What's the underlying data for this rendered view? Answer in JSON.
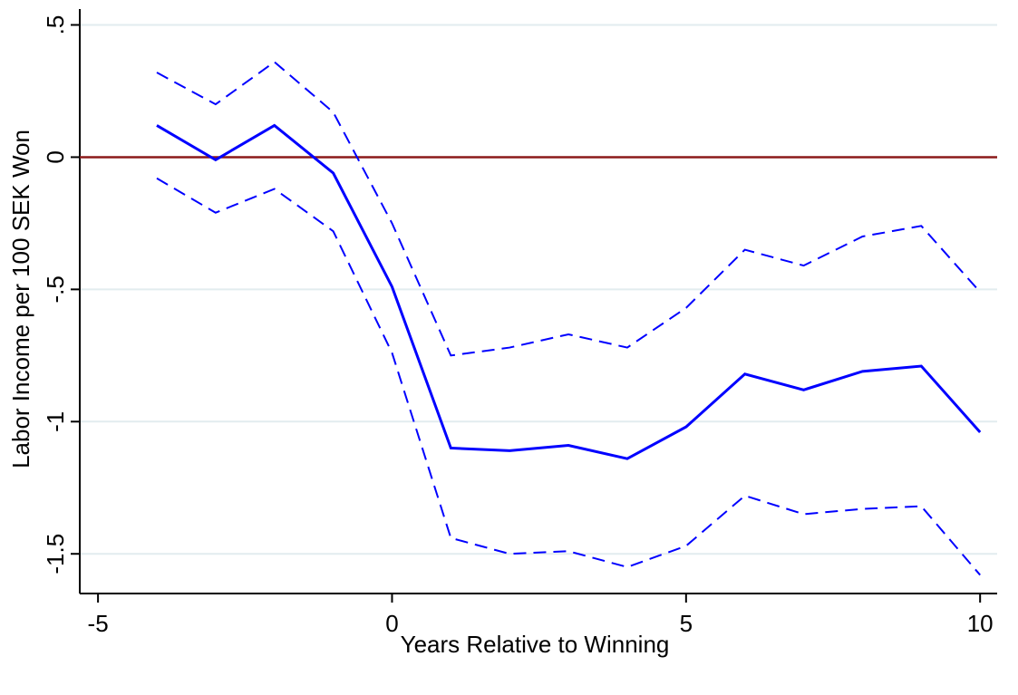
{
  "chart_data": {
    "type": "line",
    "x_label": "Years Relative to Winning",
    "y_label": "Labor Income per 100 SEK Won",
    "x": [
      -4,
      -3,
      -2,
      -1,
      0,
      1,
      2,
      3,
      4,
      5,
      6,
      7,
      8,
      9,
      10
    ],
    "series": [
      {
        "color": "#0000ff",
        "style": "solid",
        "values": [
          0.12,
          -0.01,
          0.12,
          -0.06,
          -0.49,
          -1.1,
          -1.11,
          -1.09,
          -1.14,
          -1.02,
          -0.82,
          -0.88,
          -0.81,
          -0.79,
          -1.04
        ]
      },
      {
        "color": "#0000ff",
        "style": "dashed",
        "values": [
          0.32,
          0.2,
          0.36,
          0.17,
          -0.25,
          -0.75,
          -0.72,
          -0.67,
          -0.72,
          -0.57,
          -0.35,
          -0.41,
          -0.3,
          -0.26,
          -0.51
        ]
      },
      {
        "color": "#0000ff",
        "style": "dashed",
        "values": [
          -0.08,
          -0.21,
          -0.12,
          -0.28,
          -0.74,
          -1.44,
          -1.5,
          -1.49,
          -1.55,
          -1.47,
          -1.28,
          -1.35,
          -1.33,
          -1.32,
          -1.58
        ]
      }
    ],
    "reference_line": {
      "value": 0,
      "color": "#8b1a1a"
    },
    "xlim": [
      -5.31,
      10.29
    ],
    "ylim": [
      -1.65,
      0.56
    ],
    "xticks": [
      -5,
      0,
      5,
      10
    ],
    "yticks": [
      {
        "value": 0.5,
        "label": ".5"
      },
      0,
      {
        "value": -0.5,
        "label": "-.5"
      },
      -1,
      {
        "value": -1.5,
        "label": "-1.5"
      }
    ],
    "grid": true,
    "grid_color": "#e2ecef"
  }
}
